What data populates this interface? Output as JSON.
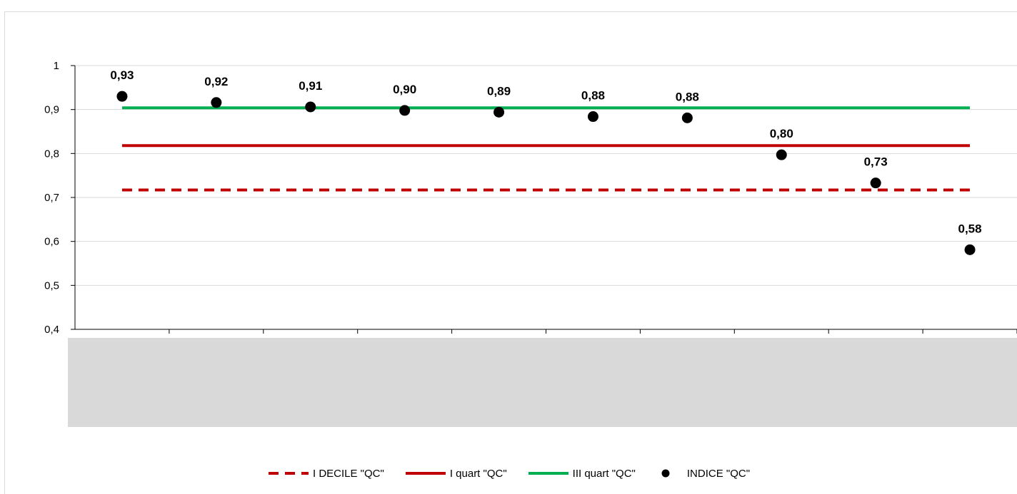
{
  "chart_data": {
    "type": "scatter",
    "title": "",
    "xlabel": "",
    "ylabel": "",
    "ylim": [
      0.4,
      1.0
    ],
    "yticks": [
      "0,4",
      "0,5",
      "0,6",
      "0,7",
      "0,8",
      "0,9",
      "1"
    ],
    "ytick_values": [
      0.4,
      0.5,
      0.6,
      0.7,
      0.8,
      0.9,
      1.0
    ],
    "categories_count": 10,
    "grid": true,
    "legend_position": "bottom",
    "series": [
      {
        "name": "I DECILE \"QC\"",
        "kind": "line",
        "style": "dashed",
        "color": "#c00000",
        "value": 0.717
      },
      {
        "name": "I quart \"QC\"",
        "kind": "line",
        "style": "solid",
        "color": "#c00000",
        "value": 0.818
      },
      {
        "name": "III quart \"QC\"",
        "kind": "line",
        "style": "solid",
        "color": "#00b050",
        "value": 0.904
      },
      {
        "name": "INDICE \"QC\"",
        "kind": "points",
        "color": "#000000",
        "values": [
          0.93,
          0.916,
          0.906,
          0.898,
          0.894,
          0.884,
          0.881,
          0.797,
          0.733,
          0.581
        ],
        "labels": [
          "0,93",
          "0,92",
          "0,91",
          "0,90",
          "0,89",
          "0,88",
          "0,88",
          "0,80",
          "0,73",
          "0,58"
        ]
      }
    ]
  }
}
